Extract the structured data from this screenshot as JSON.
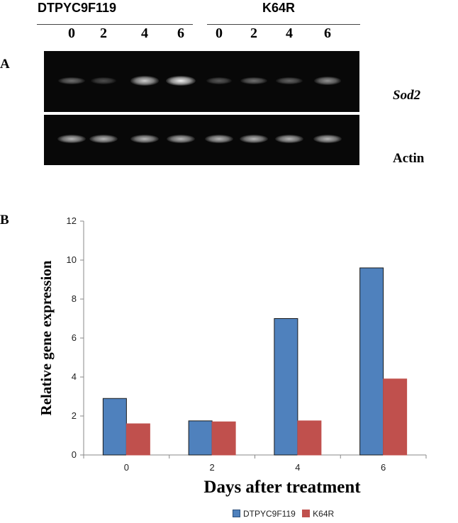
{
  "panel_a": {
    "letter": "A",
    "groups": [
      {
        "name": "DTPYC9F119",
        "lanes": [
          "0",
          "2",
          "4",
          "6"
        ],
        "sod2_intensity": [
          0.45,
          0.3,
          0.85,
          1.0
        ],
        "actin_intensity": [
          0.75,
          0.75,
          0.75,
          0.75
        ]
      },
      {
        "name": "K64R",
        "lanes": [
          "0",
          "2",
          "4",
          "6"
        ],
        "sod2_intensity": [
          0.35,
          0.45,
          0.4,
          0.6
        ],
        "actin_intensity": [
          0.75,
          0.75,
          0.75,
          0.75
        ]
      }
    ],
    "gel_labels": {
      "top": "Sod2",
      "bottom": "Actin"
    }
  },
  "chart_data": {
    "panel_letter": "B",
    "type": "bar",
    "categories": [
      "0",
      "2",
      "4",
      "6"
    ],
    "series": [
      {
        "name": "DTPYC9F119",
        "values": [
          2.9,
          1.75,
          7.0,
          9.6
        ],
        "color": "#4f81bd",
        "stroke": "#1a1a1a"
      },
      {
        "name": "K64R",
        "values": [
          1.6,
          1.7,
          1.75,
          3.9
        ],
        "color": "#c0504d",
        "stroke": "#c0504d"
      }
    ],
    "xlabel": "Days after treatment",
    "ylabel": "Relative gene expression",
    "ylim": [
      0,
      12
    ],
    "yticks": [
      0,
      2,
      4,
      6,
      8,
      10,
      12
    ],
    "grid": false,
    "legend_position": "bottom-center"
  }
}
